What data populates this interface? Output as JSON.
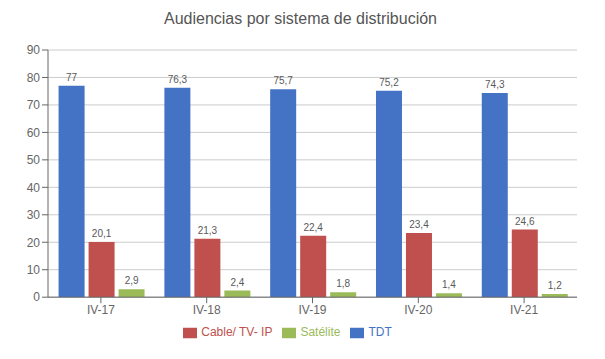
{
  "chart_data": {
    "type": "bar",
    "title": "Audiencias por sistema de distribución",
    "categories": [
      "IV-17",
      "IV-18",
      "IV-19",
      "IV-20",
      "IV-21"
    ],
    "series": [
      {
        "name": "TDT",
        "color": "#4472C4",
        "values": [
          77,
          76.3,
          75.7,
          75.2,
          74.3
        ],
        "value_labels": [
          "77",
          "76,3",
          "75,7",
          "75,2",
          "74,3"
        ]
      },
      {
        "name": "Cable/ TV- IP",
        "color": "#C0504D",
        "values": [
          20.1,
          21.3,
          22.4,
          23.4,
          24.6
        ],
        "value_labels": [
          "20,1",
          "21,3",
          "22,4",
          "23,4",
          "24,6"
        ]
      },
      {
        "name": "Satélite",
        "color": "#9BBB59",
        "values": [
          2.9,
          2.4,
          1.8,
          1.4,
          1.2
        ],
        "value_labels": [
          "2,9",
          "2,4",
          "1,8",
          "1,4",
          "1,2"
        ]
      }
    ],
    "ylim": [
      0,
      90
    ],
    "yticks": [
      0,
      10,
      20,
      30,
      40,
      50,
      60,
      70,
      80,
      90
    ],
    "grid": true,
    "legend": "bottom",
    "data_labels": true
  }
}
